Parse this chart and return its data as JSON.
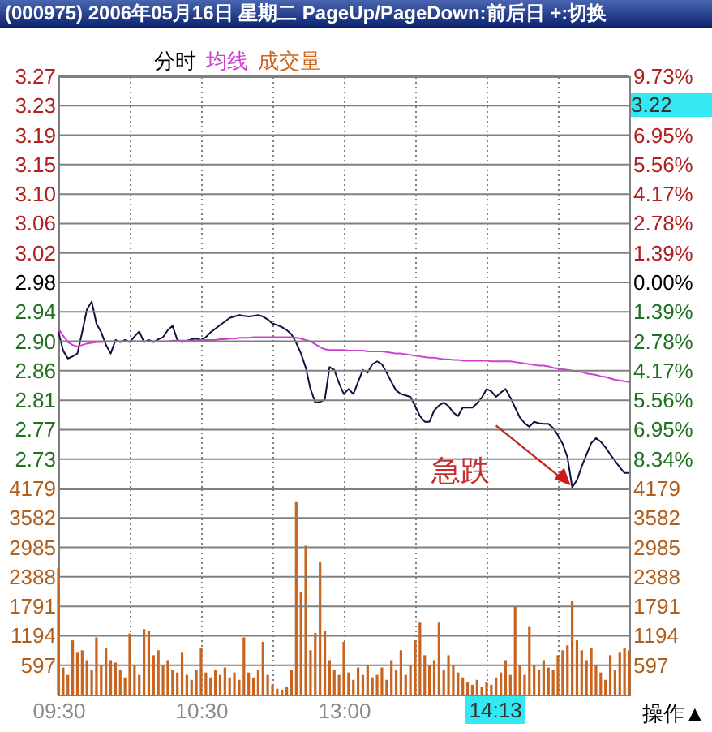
{
  "chart_data": [
    {
      "type": "line",
      "title": "(000975) 2006年05月16日 星期二 PageUp/PageDown:前后日 +:切换",
      "subtitle": "分时",
      "grid": true,
      "tick_labels": "y",
      "categories": [
        null,
        null,
        null,
        null,
        null,
        null,
        null,
        null,
        null,
        null,
        null,
        null,
        null,
        null,
        null,
        null,
        null,
        null,
        null,
        null,
        null,
        null,
        null,
        null,
        null,
        null,
        null,
        null,
        null,
        null,
        null,
        null,
        null,
        null,
        null,
        null,
        null,
        null,
        null,
        null,
        null,
        null,
        null,
        null,
        null,
        null,
        null,
        null,
        null,
        null,
        null,
        null,
        null,
        null,
        null,
        null,
        null,
        null,
        null,
        null,
        null,
        null,
        null,
        null,
        null,
        null,
        null,
        null,
        null,
        null,
        null,
        null,
        null,
        null,
        null,
        null,
        null,
        null,
        null,
        null,
        null,
        null,
        null,
        null,
        null,
        null,
        null,
        null,
        null,
        null,
        null,
        null,
        null,
        null,
        null,
        null,
        null,
        null,
        null,
        null,
        null,
        null,
        null,
        null,
        null,
        null,
        null,
        null,
        null,
        null,
        null,
        null,
        null,
        null,
        null,
        null,
        null,
        null,
        null,
        null,
        null
      ],
      "ylim": [
        2.6901,
        3.2699
      ],
      "yticks": [
        {
          "value": 3.2699,
          "label": "3.27"
        },
        {
          "value": 3.2285,
          "label": "3.23"
        },
        {
          "value": 3.1871,
          "label": "3.19"
        },
        {
          "value": 3.1457,
          "label": "3.15"
        },
        {
          "value": 3.1043,
          "label": "3.10"
        },
        {
          "value": 3.0628,
          "label": "3.06"
        },
        {
          "value": 3.0214,
          "label": "3.02"
        },
        {
          "value": 2.98,
          "label": "2.98"
        },
        {
          "value": 2.9386,
          "label": "2.94"
        },
        {
          "value": 2.8972,
          "label": "2.90"
        },
        {
          "value": 2.8557,
          "label": "2.86"
        },
        {
          "value": 2.8143,
          "label": "2.81"
        },
        {
          "value": 2.7729,
          "label": "2.77"
        },
        {
          "value": 2.7315,
          "label": "2.73"
        }
      ],
      "y2lim": [
        -9.73,
        9.73
      ],
      "y2ticks": [
        {
          "value": 9.73,
          "label": "9.73%"
        },
        {
          "value": 8.34,
          "label": null
        },
        {
          "value": 6.95,
          "label": "6.95%"
        },
        {
          "value": 5.56,
          "label": "5.56%"
        },
        {
          "value": 4.17,
          "label": "4.17%"
        },
        {
          "value": 2.78,
          "label": "2.78%"
        },
        {
          "value": 1.39,
          "label": "1.39%"
        },
        {
          "value": 0,
          "label": "0.00%"
        },
        {
          "value": -1.39,
          "label": "1.39%"
        },
        {
          "value": -2.78,
          "label": "2.78%"
        },
        {
          "value": -4.17,
          "label": "4.17%"
        },
        {
          "value": -5.56,
          "label": "5.56%"
        },
        {
          "value": -6.95,
          "label": "6.95%"
        },
        {
          "value": -8.34,
          "label": "8.34%"
        }
      ],
      "series": [
        {
          "color": "#101040",
          "values": [
            2.911,
            2.884,
            2.873,
            2.876,
            2.88,
            2.91,
            2.942,
            2.953,
            2.922,
            2.91,
            2.892,
            2.88,
            2.899,
            2.896,
            2.899,
            2.896,
            2.904,
            2.911,
            2.896,
            2.899,
            2.896,
            2.9,
            2.903,
            2.913,
            2.919,
            2.899,
            2.896,
            2.898,
            2.9,
            2.901,
            2.899,
            2.903,
            2.91,
            2.915,
            2.92,
            2.925,
            2.93,
            2.932,
            2.934,
            2.933,
            2.932,
            2.933,
            2.934,
            2.932,
            2.928,
            2.922,
            2.92,
            2.917,
            2.913,
            2.907,
            2.895,
            2.88,
            2.86,
            2.83,
            2.811,
            2.812,
            2.815,
            2.861,
            2.857,
            2.838,
            2.823,
            2.83,
            2.823,
            2.84,
            2.857,
            2.853,
            2.865,
            2.869,
            2.865,
            2.853,
            2.84,
            2.828,
            2.823,
            2.821,
            2.819,
            2.806,
            2.792,
            2.784,
            2.784,
            2.8,
            2.807,
            2.811,
            2.806,
            2.797,
            2.792,
            2.804,
            2.804,
            2.804,
            2.81,
            2.818,
            2.83,
            2.827,
            2.819,
            2.825,
            2.83,
            2.818,
            2.804,
            2.79,
            2.782,
            2.777,
            2.784,
            2.782,
            2.781,
            2.781,
            2.775,
            2.765,
            2.753,
            2.734,
            2.692,
            2.702,
            2.721,
            2.738,
            2.754,
            2.761,
            2.756,
            2.748,
            2.738,
            2.729,
            2.72,
            2.712,
            2.712
          ]
        },
        {
          "name": "均线",
          "color": "#cc40cc",
          "values": [
            2.915,
            2.905,
            2.896,
            2.892,
            2.89,
            2.892,
            2.894,
            2.895,
            2.896,
            2.896,
            2.897,
            2.897,
            2.897,
            2.897,
            2.897,
            2.897,
            2.897,
            2.897,
            2.897,
            2.897,
            2.897,
            2.897,
            2.897,
            2.897,
            2.898,
            2.898,
            2.898,
            2.898,
            2.898,
            2.898,
            2.899,
            2.899,
            2.899,
            2.899,
            2.9,
            2.9,
            2.901,
            2.901,
            2.902,
            2.902,
            2.902,
            2.903,
            2.903,
            2.903,
            2.903,
            2.903,
            2.903,
            2.903,
            2.903,
            2.903,
            2.902,
            2.901,
            2.899,
            2.897,
            2.893,
            2.889,
            2.886,
            2.885,
            2.885,
            2.885,
            2.885,
            2.884,
            2.884,
            2.884,
            2.884,
            2.883,
            2.883,
            2.883,
            2.883,
            2.882,
            2.881,
            2.88,
            2.88,
            2.879,
            2.878,
            2.877,
            2.876,
            2.875,
            2.874,
            2.874,
            2.873,
            2.872,
            2.872,
            2.871,
            2.871,
            2.87,
            2.87,
            2.87,
            2.87,
            2.87,
            2.87,
            2.869,
            2.869,
            2.869,
            2.869,
            2.869,
            2.868,
            2.867,
            2.866,
            2.865,
            2.864,
            2.863,
            2.863,
            2.862,
            2.86,
            2.859,
            2.858,
            2.857,
            2.856,
            2.855,
            2.854,
            2.852,
            2.851,
            2.85,
            2.848,
            2.847,
            2.845,
            2.843,
            2.842,
            2.841,
            2.84
          ]
        }
      ],
      "annotations": [
        "急跌",
        "3.22"
      ]
    },
    {
      "type": "bar",
      "grid": true,
      "categories": [
        "09:30",
        null,
        null,
        null,
        null,
        null,
        null,
        null,
        null,
        null,
        null,
        null,
        null,
        null,
        null,
        null,
        null,
        null,
        null,
        null,
        null,
        null,
        null,
        null,
        null,
        null,
        null,
        null,
        null,
        null,
        "10:30",
        null,
        null,
        null,
        null,
        null,
        null,
        null,
        null,
        null,
        null,
        null,
        null,
        null,
        null,
        null,
        null,
        null,
        null,
        null,
        null,
        null,
        null,
        null,
        null,
        null,
        null,
        null,
        null,
        null,
        "13:00",
        null,
        null,
        null,
        null,
        null,
        null,
        null,
        null,
        null,
        null,
        null,
        null,
        null,
        null,
        null,
        null,
        null,
        null,
        null,
        null,
        null,
        null,
        null,
        null,
        null,
        null,
        null,
        null,
        null,
        null,
        null,
        null,
        null,
        null,
        null,
        null,
        null,
        null,
        null,
        null,
        null,
        null,
        null,
        null,
        null,
        null,
        null,
        null,
        null,
        null,
        null,
        null,
        null,
        null,
        null,
        null,
        null,
        null,
        null,
        null
      ],
      "ylim": [
        0,
        4179
      ],
      "yticks": [
        597,
        1194,
        1791,
        2388,
        2985,
        3582,
        4179
      ],
      "y2lim": [
        0,
        4179
      ],
      "y2ticks": [
        597,
        1194,
        1791,
        2388,
        2985,
        3582,
        4179
      ],
      "series": [
        {
          "name": "成交量",
          "color": "#c8641e",
          "values": [
            2570,
            550,
            400,
            1100,
            850,
            900,
            700,
            500,
            1160,
            600,
            950,
            700,
            650,
            500,
            350,
            1240,
            600,
            400,
            1330,
            1300,
            800,
            900,
            600,
            700,
            500,
            450,
            850,
            400,
            300,
            500,
            950,
            450,
            350,
            500,
            400,
            550,
            350,
            450,
            300,
            1160,
            450,
            350,
            500,
            1070,
            400,
            200,
            120,
            100,
            150,
            500,
            3920,
            2080,
            3020,
            900,
            1250,
            2680,
            1300,
            700,
            500,
            400,
            1070,
            450,
            300,
            550,
            400,
            600,
            350,
            400,
            550,
            300,
            700,
            500,
            900,
            400,
            600,
            1100,
            1460,
            800,
            600,
            700,
            1460,
            500,
            800,
            600,
            450,
            350,
            250,
            200,
            300,
            150,
            250,
            200,
            350,
            450,
            700,
            400,
            1780,
            600,
            400,
            1390,
            600,
            500,
            700,
            550,
            500,
            800,
            900,
            1000,
            1910,
            1100,
            900,
            700,
            950,
            600,
            450,
            300,
            800,
            500,
            850,
            950,
            900
          ]
        }
      ],
      "annotations": [
        "14:13",
        "操作▲"
      ]
    }
  ]
}
